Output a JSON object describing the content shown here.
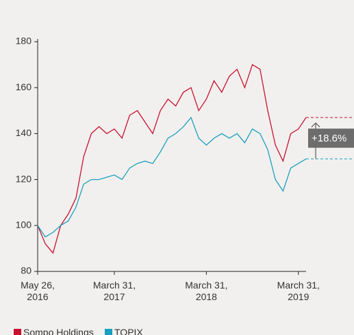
{
  "chart_data": {
    "type": "line",
    "categories": [
      "May 26, 2016",
      null,
      null,
      null,
      null,
      null,
      null,
      null,
      null,
      null,
      "March 31, 2017",
      null,
      null,
      null,
      null,
      null,
      null,
      null,
      null,
      null,
      null,
      null,
      "March 31, 2018",
      null,
      null,
      null,
      null,
      null,
      null,
      null,
      null,
      null,
      null,
      null,
      "March 31, 2019",
      null
    ],
    "series": [
      {
        "name": "Sompo Holdings",
        "color": "#c8102e",
        "values": [
          100,
          92,
          88,
          100,
          105,
          112,
          130,
          140,
          143,
          140,
          142,
          138,
          148,
          150,
          145,
          140,
          150,
          155,
          152,
          158,
          160,
          150,
          155,
          163,
          158,
          165,
          168,
          160,
          170,
          168,
          150,
          135,
          128,
          140,
          142,
          147
        ]
      },
      {
        "name": "TOPIX",
        "color": "#1a9fc0",
        "values": [
          100,
          95,
          97,
          100,
          102,
          108,
          118,
          120,
          120,
          121,
          122,
          120,
          125,
          127,
          128,
          127,
          132,
          138,
          140,
          143,
          147,
          138,
          135,
          138,
          140,
          138,
          140,
          136,
          142,
          140,
          133,
          120,
          115,
          125,
          127,
          129
        ]
      }
    ],
    "annotation": "+18.6%",
    "ylim": [
      80,
      180
    ],
    "yticks": [
      80,
      100,
      120,
      140,
      160,
      180
    ]
  }
}
